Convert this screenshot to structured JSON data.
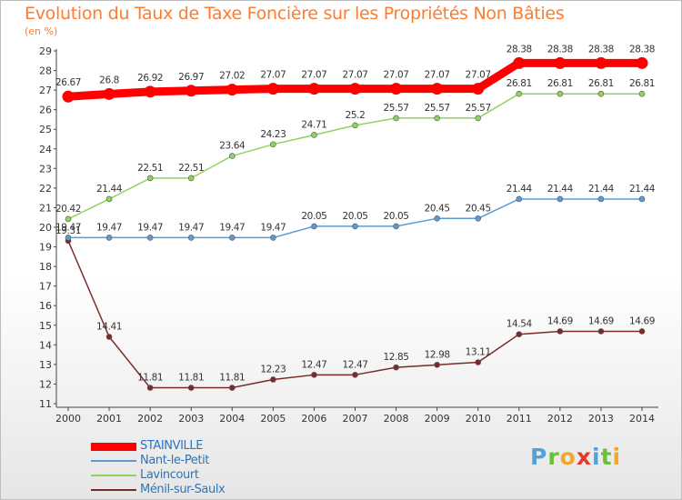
{
  "title": "Evolution du Taux de Taxe Foncière sur les Propriétés Non Bâties",
  "subtitle": "(en %)",
  "brand": {
    "letters": [
      "P",
      "r",
      "o",
      "x",
      "i",
      "t",
      "i"
    ],
    "colors": [
      "#4fa3dd",
      "#6cbf3a",
      "#f2a62a",
      "#e23b2e",
      "#4fa3dd",
      "#6cbf3a",
      "#f2a62a"
    ]
  },
  "chart_data": {
    "type": "line",
    "x": [
      "2000",
      "2001",
      "2002",
      "2003",
      "2004",
      "2005",
      "2006",
      "2007",
      "2008",
      "2009",
      "2010",
      "2011",
      "2012",
      "2013",
      "2014"
    ],
    "ylim": [
      11,
      29
    ],
    "yticks": [
      "11",
      "12",
      "13",
      "14",
      "15",
      "16",
      "17",
      "18",
      "19",
      "20",
      "21",
      "22",
      "23",
      "24",
      "25",
      "26",
      "27",
      "28",
      "29"
    ],
    "grid": false,
    "legend_position": "bottom-left",
    "series": [
      {
        "name": "STAINVILLE",
        "color": "#ff0000",
        "values": [
          26.67,
          26.8,
          26.92,
          26.97,
          27.02,
          27.07,
          27.07,
          27.07,
          27.07,
          27.07,
          27.07,
          28.38,
          28.38,
          28.38,
          28.38
        ],
        "labels": [
          "26.67",
          "26.8",
          "26.92",
          "26.97",
          "27.02",
          "27.07",
          "27.07",
          "27.07",
          "27.07",
          "27.07",
          "27.07",
          "28.38",
          "28.38",
          "28.38",
          "28.38"
        ]
      },
      {
        "name": "Nant-le-Petit",
        "color": "#5b9bd5",
        "values": [
          19.47,
          19.47,
          19.47,
          19.47,
          19.47,
          19.47,
          20.05,
          20.05,
          20.05,
          20.45,
          20.45,
          21.44,
          21.44,
          21.44,
          21.44
        ],
        "labels": [
          "19.47",
          "19.47",
          "19.47",
          "19.47",
          "19.47",
          "19.47",
          "20.05",
          "20.05",
          "20.05",
          "20.45",
          "20.45",
          "21.44",
          "21.44",
          "21.44",
          "21.44"
        ]
      },
      {
        "name": "Lavincourt",
        "color": "#8fd45a",
        "values": [
          20.42,
          21.44,
          22.51,
          22.51,
          23.64,
          24.23,
          24.71,
          25.2,
          25.57,
          25.57,
          25.57,
          26.81,
          26.81,
          26.81,
          26.81
        ],
        "labels": [
          "20.42",
          "21.44",
          "22.51",
          "22.51",
          "23.64",
          "24.23",
          "24.71",
          "25.2",
          "25.57",
          "25.57",
          "25.57",
          "26.81",
          "26.81",
          "26.81",
          "26.81"
        ]
      },
      {
        "name": "Ménil-sur-Saulx",
        "color": "#7a2a2a",
        "values": [
          19.31,
          14.41,
          11.81,
          11.81,
          11.81,
          12.23,
          12.47,
          12.47,
          12.85,
          12.98,
          13.11,
          14.54,
          14.69,
          14.69,
          14.69
        ],
        "labels": [
          "19.31",
          "14.41",
          "11.81",
          "11.81",
          "11.81",
          "12.23",
          "12.47",
          "12.47",
          "12.85",
          "12.98",
          "13.11",
          "14.54",
          "14.69",
          "14.69",
          "14.69"
        ]
      }
    ]
  }
}
